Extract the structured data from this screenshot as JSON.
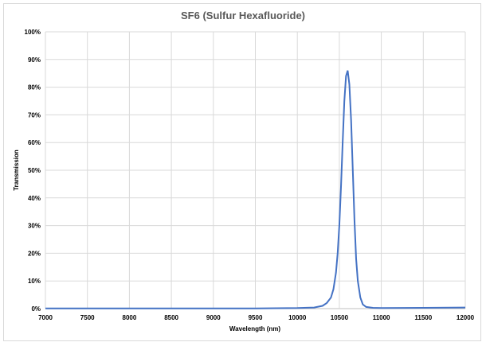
{
  "chart_data": {
    "type": "line",
    "title": "SF6 (Sulfur Hexafluoride)",
    "xlabel": "Wavelength (nm)",
    "ylabel": "Transmission",
    "xlim": [
      7000,
      12000
    ],
    "ylim": [
      0,
      100
    ],
    "x_ticks": [
      "7000",
      "7500",
      "8000",
      "8500",
      "9000",
      "9500",
      "10000",
      "10500",
      "11000",
      "11500",
      "12000"
    ],
    "y_ticks": [
      "0%",
      "10%",
      "20%",
      "30%",
      "40%",
      "50%",
      "60%",
      "70%",
      "80%",
      "90%",
      "100%"
    ],
    "grid": true,
    "legend": "none",
    "line_color": "#4472c4",
    "series": [
      {
        "x": [
          7000,
          7500,
          8000,
          8500,
          9000,
          9500,
          10000,
          10200,
          10300,
          10350,
          10400,
          10430,
          10460,
          10480,
          10500,
          10520,
          10540,
          10560,
          10580,
          10600,
          10620,
          10640,
          10660,
          10680,
          10700,
          10720,
          10750,
          10780,
          10820,
          10900,
          11000,
          11500,
          12000
        ],
        "values": [
          0.1,
          0.1,
          0.1,
          0.1,
          0.1,
          0.1,
          0.2,
          0.4,
          1.0,
          2.0,
          4.0,
          7.0,
          13.0,
          20.0,
          30.0,
          44.0,
          60.0,
          75.0,
          84.0,
          86.0,
          81.0,
          68.0,
          50.0,
          32.0,
          18.0,
          10.0,
          4.0,
          1.5,
          0.6,
          0.3,
          0.2,
          0.3,
          0.4
        ]
      }
    ]
  }
}
